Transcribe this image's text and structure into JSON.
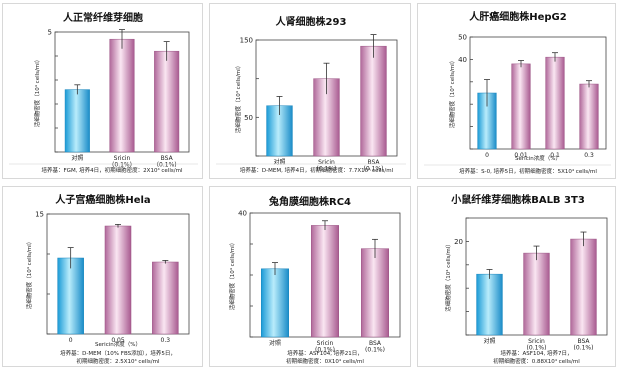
{
  "chart_data": [
    {
      "type": "bar",
      "title": "人正常纤维芽细胞",
      "ylabel": "活细胞密度（10⁴ cells/ml）",
      "xlabel": "",
      "categories": [
        [
          "对照"
        ],
        [
          "Sricin",
          "(0.1%)"
        ],
        [
          "BSA",
          "(0.1%)"
        ]
      ],
      "values": [
        2.6,
        4.7,
        4.2
      ],
      "errors": [
        0.2,
        0.4,
        0.4
      ],
      "ylim": [
        0,
        5
      ],
      "yticks": [
        0,
        1,
        2,
        3,
        4,
        5
      ],
      "yticklabels": [
        "",
        "",
        "",
        "",
        "",
        "5"
      ],
      "colors": [
        "cyan",
        "pink",
        "pink"
      ],
      "note": [
        "培养基：FGM, 培养4日，初期细胞密度：2X10⁴ cells/ml"
      ]
    },
    {
      "type": "bar",
      "title": "人肾细胞株293",
      "ylabel": "活细胞密度（10⁴ cells/ml）",
      "xlabel": "",
      "categories": [
        [
          "对照"
        ],
        [
          "Sricin",
          "(0.1%)"
        ],
        [
          "BSA",
          "(0.1%)"
        ]
      ],
      "values": [
        65,
        100,
        142
      ],
      "errors": [
        12,
        20,
        15
      ],
      "ylim": [
        0,
        150
      ],
      "yticks": [
        0,
        50,
        100,
        150
      ],
      "yticklabels": [
        "",
        "50",
        "",
        "150"
      ],
      "colors": [
        "cyan",
        "pink",
        "pink"
      ],
      "note": [
        "培养基：D-MEM, 培养4日，初期细胞密度：7.7X10⁴ cells/ml"
      ]
    },
    {
      "type": "bar",
      "title": "人肝癌细胞株HepG2",
      "ylabel": "活细胞密度（10⁴ cells/ml）",
      "xlabel": "Sericin浓度（%）",
      "categories": [
        [
          "0"
        ],
        [
          "0.01"
        ],
        [
          "0.1"
        ],
        [
          "0.3"
        ]
      ],
      "values": [
        25,
        38,
        41,
        29
      ],
      "errors": [
        6,
        1.5,
        2,
        1.5
      ],
      "ylim": [
        0,
        50
      ],
      "yticks": [
        0,
        10,
        20,
        30,
        40,
        50
      ],
      "yticklabels": [
        "",
        "",
        "",
        "",
        "40",
        "50"
      ],
      "colors": [
        "cyan",
        "pink",
        "pink",
        "pink"
      ],
      "note": [
        "培养基：S-0, 培养5日，初期细胞密度：5X10⁴ cells/ml"
      ]
    },
    {
      "type": "bar",
      "title": "人子宫癌细胞株Hela",
      "ylabel": "活细胞密度（10⁴ cells/ml）",
      "xlabel": "Sericin浓度（%）",
      "categories": [
        [
          "0"
        ],
        [
          "0.05"
        ],
        [
          "0.3"
        ]
      ],
      "values": [
        9.5,
        13.5,
        9
      ],
      "errors": [
        1.3,
        0.2,
        0.2
      ],
      "ylim": [
        0,
        15
      ],
      "yticks": [
        0,
        5,
        10,
        15
      ],
      "yticklabels": [
        "",
        "",
        "",
        "15"
      ],
      "colors": [
        "cyan",
        "pink",
        "pink"
      ],
      "note": [
        "培养基：D-MEM（10% FBS添加），培养5日，",
        "初期细胞密度：2.5X10⁴ cells/ml"
      ]
    },
    {
      "type": "bar",
      "title": "兔角膜细胞株RC4",
      "ylabel": "活细胞密度（10⁴ cells/ml）",
      "xlabel": "",
      "categories": [
        [
          "对照"
        ],
        [
          "Sricin",
          "(0.1%)"
        ],
        [
          "BSA",
          "(0.1%)"
        ]
      ],
      "values": [
        22,
        36,
        28.5
      ],
      "errors": [
        2,
        1.5,
        3
      ],
      "ylim": [
        0,
        40
      ],
      "yticks": [
        0,
        10,
        20,
        30,
        40
      ],
      "yticklabels": [
        "",
        "",
        "",
        "",
        "40"
      ],
      "colors": [
        "cyan",
        "pink",
        "pink"
      ],
      "note": [
        "培养基：ASF104, 培养21日，",
        "初期细胞密度：0X10⁴ cells/ml"
      ]
    },
    {
      "type": "bar",
      "title": "小鼠纤维芽细胞株BALB 3T3",
      "ylabel": "活细胞密度（10⁴ cells/ml）",
      "xlabel": "",
      "categories": [
        [
          "对照"
        ],
        [
          "Sricin",
          "(0.1%)"
        ],
        [
          "BSA",
          "(0.1%)"
        ]
      ],
      "values": [
        13,
        17.5,
        20.5
      ],
      "errors": [
        1,
        1.5,
        1.5
      ],
      "ylim": [
        0,
        25
      ],
      "yticks": [
        0,
        5,
        10,
        15,
        20,
        25
      ],
      "yticklabels": [
        "",
        "",
        "",
        "",
        "20",
        ""
      ],
      "colors": [
        "cyan",
        "pink",
        "pink"
      ],
      "note": [
        "培养基：ASF104, 培养7日，",
        "初期细胞密度：0.88X10⁴ cells/ml"
      ]
    }
  ]
}
